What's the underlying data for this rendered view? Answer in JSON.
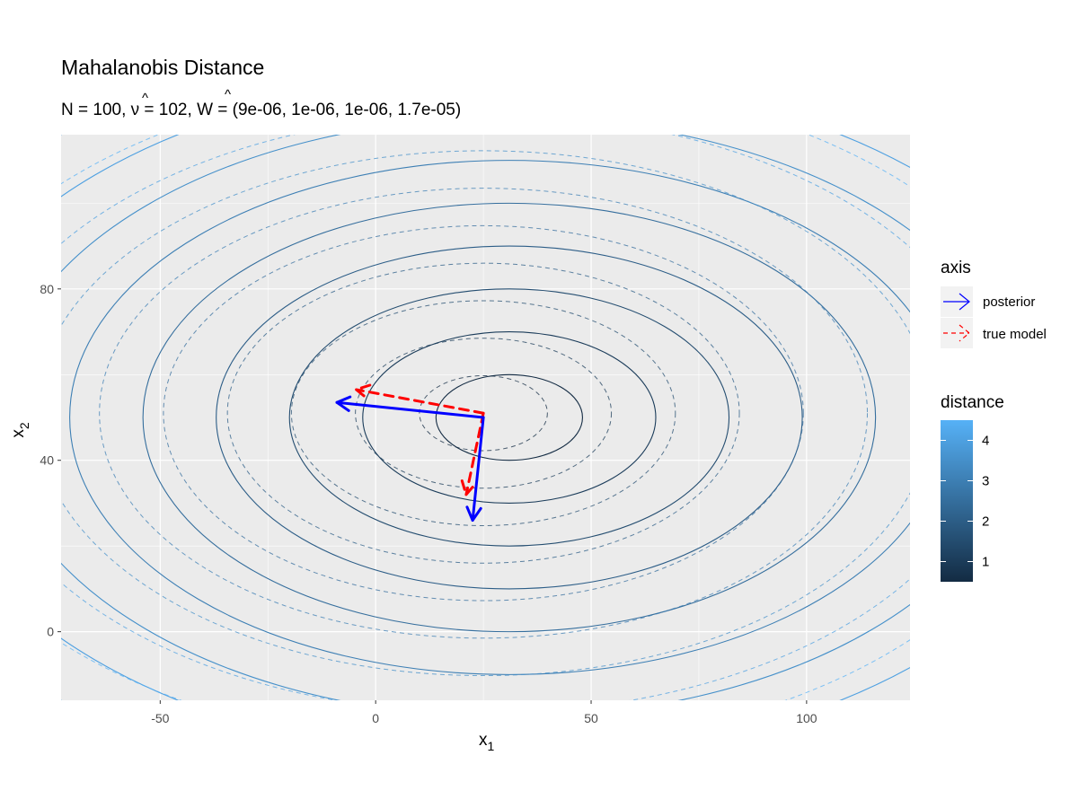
{
  "chart_data": {
    "type": "contour",
    "title": "Mahalanobis Distance",
    "subtitle": {
      "n_part": "N = 100, ",
      "nu_symbol": "ν",
      "nu_part": " = 102, ",
      "w_symbol": "W",
      "w_part": " = (9e-06, 1e-06, 1e-06, 1.7e-05)"
    },
    "xlabel": "x",
    "xlabel_sub": "1",
    "ylabel": "x",
    "ylabel_sub": "2",
    "xlim": [
      -73,
      124
    ],
    "ylim": [
      -16,
      116
    ],
    "x_ticks": [
      -50,
      0,
      50,
      100
    ],
    "y_ticks": [
      0,
      40,
      80
    ],
    "grid": true,
    "posterior_contours": {
      "center": [
        31,
        50
      ],
      "radii_x_at_level1": 34,
      "radii_y_at_level1": 20,
      "levels": [
        0.5,
        1,
        1.5,
        2,
        2.5,
        3,
        3.5,
        4,
        4.5
      ]
    },
    "true_model_contours": {
      "center": [
        25,
        51
      ],
      "radii_x_at_level1": 29.7,
      "radii_y_at_level1": 17.5,
      "levels": [
        0.5,
        1,
        1.5,
        2,
        2.5,
        3,
        3.5,
        4,
        4.5
      ]
    },
    "arrows": {
      "posterior": [
        {
          "from": [
            25,
            50
          ],
          "to": [
            -9,
            53.5
          ]
        },
        {
          "from": [
            25,
            50
          ],
          "to": [
            22.5,
            26
          ]
        }
      ],
      "true_model": [
        {
          "from": [
            25,
            51
          ],
          "to": [
            -4.5,
            56.5
          ]
        },
        {
          "from": [
            25,
            51
          ],
          "to": [
            21,
            32
          ]
        }
      ]
    },
    "legend_axis": {
      "title": "axis",
      "items": [
        {
          "label": "posterior",
          "color": "#0000ff",
          "style": "solid"
        },
        {
          "label": "true model",
          "color": "#ff0000",
          "style": "dashed"
        }
      ]
    },
    "legend_distance": {
      "title": "distance",
      "ticks": [
        1,
        2,
        3,
        4
      ],
      "range": [
        0.5,
        4.5
      ],
      "color_low": "#132b43",
      "color_high": "#56b1f7"
    }
  }
}
